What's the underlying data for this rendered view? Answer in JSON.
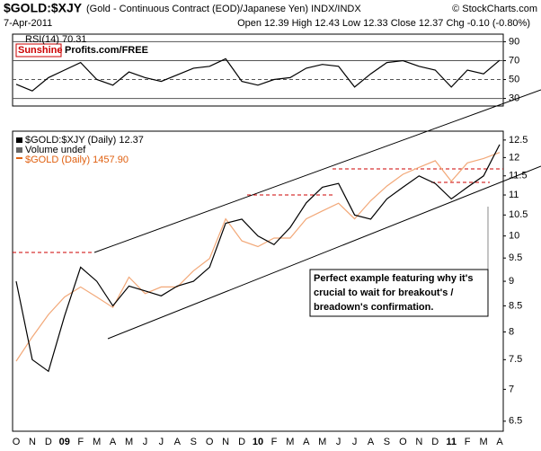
{
  "header": {
    "title": "$GOLD:$XJY",
    "subtitle": "(Gold - Continuous Contract (EOD)/Japanese Yen) INDX/INDX",
    "source": "© StockCharts.com",
    "date": "7-Apr-2011",
    "quote": "Open 12.39 High 12.43 Low 12.33 Close 12.37 Chg -0.10 (-0.80%)"
  },
  "logo": {
    "left": "Sunshine",
    "right": "Profits.com/FREE"
  },
  "annotation": "Perfect example featuring why it's crucial to wait for breakout's / breadown's confirmation.",
  "chart_data": [
    {
      "type": "line",
      "title": "RSI(14) 70.31",
      "categories": [
        "O",
        "N",
        "D",
        "09",
        "F",
        "M",
        "A",
        "M",
        "J",
        "J",
        "A",
        "S",
        "O",
        "N",
        "D",
        "10",
        "F",
        "M",
        "A",
        "M",
        "J",
        "J",
        "A",
        "S",
        "O",
        "N",
        "D",
        "11",
        "F",
        "M",
        "A"
      ],
      "series": [
        {
          "name": "RSI(14) 70.31",
          "color": "#000000",
          "values": [
            45,
            38,
            52,
            60,
            68,
            50,
            44,
            58,
            52,
            48,
            55,
            62,
            64,
            72,
            48,
            44,
            50,
            52,
            62,
            66,
            64,
            42,
            56,
            68,
            70,
            64,
            60,
            42,
            60,
            56,
            70.31
          ]
        }
      ],
      "ylim": [
        22,
        98
      ],
      "yticks": [
        30,
        50,
        70,
        90
      ],
      "grid": true
    },
    {
      "type": "line",
      "log": true,
      "categories": [
        "O",
        "N",
        "D",
        "09",
        "F",
        "M",
        "A",
        "M",
        "J",
        "J",
        "A",
        "S",
        "O",
        "N",
        "D",
        "10",
        "F",
        "M",
        "A",
        "M",
        "J",
        "J",
        "A",
        "S",
        "O",
        "N",
        "D",
        "11",
        "F",
        "M",
        "A"
      ],
      "series": [
        {
          "name": "$GOLD:$XJY (Daily) 12.37",
          "color": "#000000",
          "values": [
            9.0,
            7.5,
            7.3,
            8.3,
            9.3,
            9.0,
            8.5,
            8.9,
            8.8,
            8.7,
            8.9,
            9.0,
            9.3,
            10.3,
            10.4,
            10.0,
            9.8,
            10.2,
            10.8,
            11.2,
            11.3,
            10.5,
            10.4,
            10.9,
            11.2,
            11.5,
            11.3,
            10.9,
            11.2,
            11.5,
            12.37
          ]
        },
        {
          "name": "Volume undef",
          "color": "#666666",
          "values": [
            null,
            null,
            null,
            null,
            null,
            null,
            null,
            null,
            null,
            null,
            null,
            null,
            null,
            null,
            null,
            null,
            null,
            null,
            null,
            null,
            null,
            null,
            null,
            null,
            null,
            null,
            null,
            null,
            null,
            null,
            null
          ]
        },
        {
          "name": "$GOLD (Daily) 1457.90",
          "color": "#f2a878",
          "axis": "y2",
          "values": [
            750,
            810,
            870,
            920,
            950,
            920,
            890,
            980,
            930,
            950,
            950,
            1000,
            1040,
            1180,
            1100,
            1080,
            1110,
            1110,
            1180,
            1210,
            1240,
            1180,
            1250,
            1310,
            1360,
            1390,
            1420,
            1330,
            1410,
            1430,
            1457.9
          ]
        }
      ],
      "ylim": [
        6.35,
        12.76
      ],
      "yticks": [
        6.5,
        7.0,
        7.5,
        8.0,
        8.5,
        9.0,
        9.5,
        10.0,
        10.5,
        11.0,
        11.5,
        12.0,
        12.5
      ],
      "y2lim": [
        600,
        1560
      ]
    }
  ]
}
